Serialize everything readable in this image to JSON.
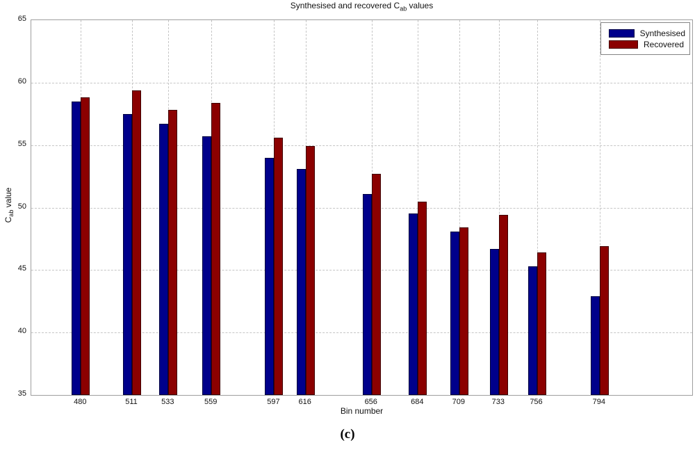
{
  "caption": "(c)",
  "chart_data": {
    "type": "bar",
    "title": {
      "prefix": "Synthesised and recovered C",
      "sub": "ab",
      "suffix": " values"
    },
    "xlabel": "Bin number",
    "ylabel": {
      "prefix": "C",
      "sub": "ab",
      "suffix": " value"
    },
    "categories": [
      480,
      511,
      533,
      559,
      597,
      616,
      656,
      684,
      709,
      733,
      756,
      794
    ],
    "series": [
      {
        "name": "Synthesised",
        "color": "#00008B",
        "values": [
          58.5,
          57.5,
          56.7,
          55.7,
          54.0,
          53.1,
          51.1,
          49.5,
          48.1,
          46.7,
          45.3,
          42.9
        ]
      },
      {
        "name": "Recovered",
        "color": "#8B0000",
        "values": [
          58.8,
          59.4,
          57.8,
          58.4,
          55.6,
          54.9,
          52.7,
          50.5,
          48.4,
          49.4,
          46.4,
          46.9
        ]
      }
    ],
    "ylim": [
      35,
      65
    ],
    "xlim": [
      450,
      850
    ],
    "yticks": [
      35,
      40,
      45,
      50,
      55,
      60,
      65
    ],
    "grid": true,
    "legend_position": "top-right",
    "colors": {
      "grid": "#c6c6c6",
      "axis_border": "#9e9e9e"
    }
  }
}
